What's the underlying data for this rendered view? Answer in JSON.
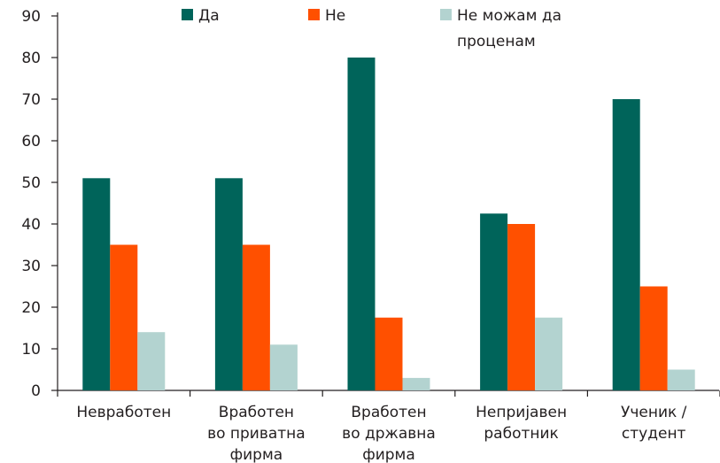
{
  "chart_data": {
    "type": "bar",
    "categories": [
      "Невработен",
      "Вработен\nво приватна\nфирма",
      "Вработен\nво државна\nфирма",
      "Непријавен\nработник",
      "Ученик /\nстудент"
    ],
    "series": [
      {
        "name": "Да",
        "color": "#00645a",
        "values": [
          51,
          51,
          80,
          42.5,
          70
        ]
      },
      {
        "name": "Не",
        "color": "#ff5000",
        "values": [
          35,
          35,
          17.5,
          40,
          25
        ]
      },
      {
        "name": "Не можам да\nпроценам",
        "color": "#b3d3d0",
        "values": [
          14,
          11,
          3,
          17.5,
          5
        ]
      }
    ],
    "ylim": [
      0,
      90
    ],
    "yticks": [
      0,
      10,
      20,
      30,
      40,
      50,
      60,
      70,
      80,
      90
    ],
    "grid": false,
    "legend": "top"
  }
}
